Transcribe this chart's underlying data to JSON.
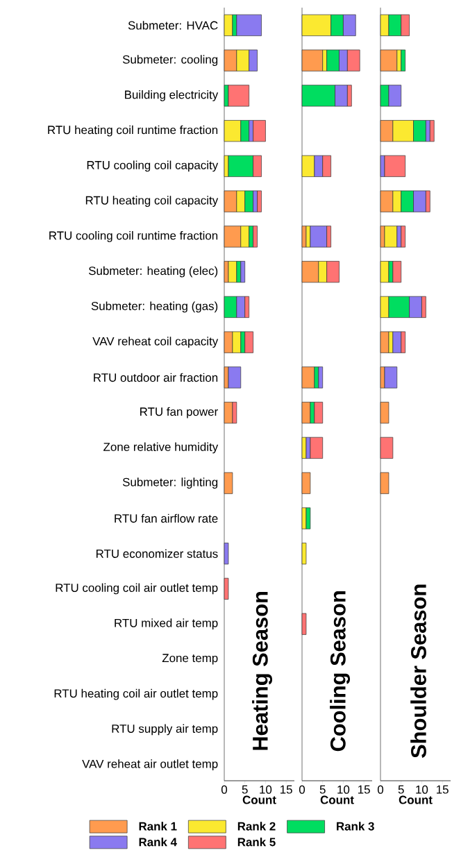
{
  "chart_data": [
    {
      "type": "bar",
      "orientation": "horizontal",
      "stacked": true,
      "legend": "bottom",
      "xlabel": "Count",
      "annotations": [
        "Heating Season"
      ],
      "categories": [
        "Submeter: HVAC",
        "Submeter: cooling",
        "Building electricity",
        "RTU heating coil runtime fraction",
        "RTU cooling coil capacity",
        "RTU heating coil capacity",
        "RTU cooling coil runtime fraction",
        "Submeter: heating (elec)",
        "Submeter: heating (gas)",
        "VAV reheat coil capacity",
        "RTU outdoor air fraction",
        "RTU fan power",
        "Zone relative humidity",
        "Submeter: lighting",
        "RTU fan airflow rate",
        "RTU economizer status",
        "RTU cooling coil air outlet temp",
        "RTU mixed air temp",
        "Zone temp",
        "RTU heating coil air outlet temp",
        "RTU supply air temp",
        "VAV reheat air outlet temp"
      ],
      "xlim": [
        0,
        17
      ],
      "xticks": [
        0,
        5,
        10,
        15
      ],
      "series": [
        {
          "name": "Rank 1",
          "color": "#ff9b4f",
          "values": [
            null,
            3,
            null,
            null,
            null,
            3,
            4,
            1,
            null,
            2,
            1,
            2,
            null,
            2,
            null,
            null,
            null,
            null,
            null,
            null,
            null,
            null
          ]
        },
        {
          "name": "Rank 2",
          "color": "#fbe930",
          "values": [
            2,
            3,
            null,
            4,
            1,
            2,
            2,
            2,
            null,
            2,
            null,
            null,
            null,
            null,
            null,
            null,
            null,
            null,
            null,
            null,
            null,
            null
          ]
        },
        {
          "name": "Rank 3",
          "color": "#00dd60",
          "values": [
            1,
            null,
            1,
            2,
            6,
            2,
            1,
            1,
            3,
            1,
            null,
            null,
            null,
            null,
            null,
            null,
            null,
            null,
            null,
            null,
            null,
            null
          ]
        },
        {
          "name": "Rank 4",
          "color": "#8a7af0",
          "values": [
            6,
            2,
            null,
            1,
            null,
            1,
            null,
            1,
            2,
            null,
            3,
            null,
            null,
            null,
            null,
            1,
            null,
            null,
            null,
            null,
            null,
            null
          ]
        },
        {
          "name": "Rank 5",
          "color": "#ff7373",
          "values": [
            null,
            null,
            5,
            3,
            2,
            1,
            1,
            null,
            1,
            2,
            null,
            1,
            null,
            null,
            null,
            null,
            1,
            null,
            null,
            null,
            null,
            null
          ]
        }
      ]
    },
    {
      "type": "bar",
      "orientation": "horizontal",
      "stacked": true,
      "tick_labels": "x",
      "xlabel": "Count",
      "annotations": [
        "Cooling Season"
      ],
      "categories": [
        null,
        null,
        null,
        null,
        null,
        null,
        null,
        null,
        null,
        null,
        null,
        null,
        null,
        null,
        null,
        null,
        null,
        null,
        null,
        null,
        null,
        null
      ],
      "xlim": [
        0,
        17
      ],
      "xticks": [
        0,
        5,
        10,
        15
      ],
      "series": [
        {
          "color": "#ff9b4f",
          "values": [
            null,
            5,
            null,
            null,
            null,
            null,
            1,
            4,
            null,
            null,
            3,
            2,
            null,
            2,
            null,
            null,
            null,
            null,
            null,
            null,
            null,
            null
          ]
        },
        {
          "color": "#fbe930",
          "values": [
            7,
            1,
            null,
            null,
            3,
            null,
            1,
            2,
            null,
            null,
            null,
            null,
            1,
            null,
            1,
            1,
            null,
            null,
            null,
            null,
            null,
            null
          ]
        },
        {
          "color": "#00dd60",
          "values": [
            3,
            3,
            8,
            null,
            null,
            null,
            null,
            null,
            null,
            null,
            1,
            1,
            null,
            null,
            1,
            null,
            null,
            null,
            null,
            null,
            null,
            null
          ]
        },
        {
          "color": "#8a7af0",
          "values": [
            3,
            2,
            3,
            null,
            2,
            null,
            4,
            null,
            null,
            null,
            1,
            null,
            1,
            null,
            null,
            null,
            null,
            null,
            null,
            null,
            null,
            null
          ]
        },
        {
          "color": "#ff7373",
          "values": [
            null,
            3,
            1,
            null,
            2,
            null,
            1,
            3,
            null,
            null,
            null,
            2,
            3,
            null,
            null,
            null,
            null,
            1,
            null,
            null,
            null,
            null
          ]
        }
      ]
    },
    {
      "type": "bar",
      "orientation": "horizontal",
      "stacked": true,
      "tick_labels": "x",
      "xlabel": "Count",
      "annotations": [
        "Shoulder Season"
      ],
      "categories": [
        null,
        null,
        null,
        null,
        null,
        null,
        null,
        null,
        null,
        null,
        null,
        null,
        null,
        null,
        null,
        null,
        null,
        null,
        null,
        null,
        null,
        null
      ],
      "xlim": [
        0,
        17
      ],
      "xticks": [
        0,
        5,
        10,
        15
      ],
      "series": [
        {
          "color": "#ff9b4f",
          "values": [
            null,
            4,
            null,
            3,
            null,
            3,
            1,
            null,
            null,
            2,
            1,
            2,
            null,
            2,
            null,
            null,
            null,
            null,
            null,
            null,
            null,
            null
          ]
        },
        {
          "color": "#fbe930",
          "values": [
            2,
            1,
            null,
            5,
            null,
            2,
            3,
            2,
            2,
            1,
            null,
            null,
            null,
            null,
            null,
            null,
            null,
            null,
            null,
            null,
            null,
            null
          ]
        },
        {
          "color": "#00dd60",
          "values": [
            3,
            1,
            2,
            3,
            null,
            3,
            null,
            1,
            5,
            null,
            null,
            null,
            null,
            null,
            null,
            null,
            null,
            null,
            null,
            null,
            null,
            null
          ]
        },
        {
          "color": "#8a7af0",
          "values": [
            null,
            null,
            3,
            1,
            1,
            3,
            1,
            null,
            3,
            2,
            3,
            null,
            null,
            null,
            null,
            null,
            null,
            null,
            null,
            null,
            null,
            null
          ]
        },
        {
          "color": "#ff7373",
          "values": [
            2,
            null,
            null,
            1,
            5,
            1,
            1,
            2,
            1,
            1,
            null,
            null,
            3,
            null,
            null,
            null,
            null,
            null,
            null,
            null,
            null,
            null
          ]
        }
      ]
    }
  ]
}
